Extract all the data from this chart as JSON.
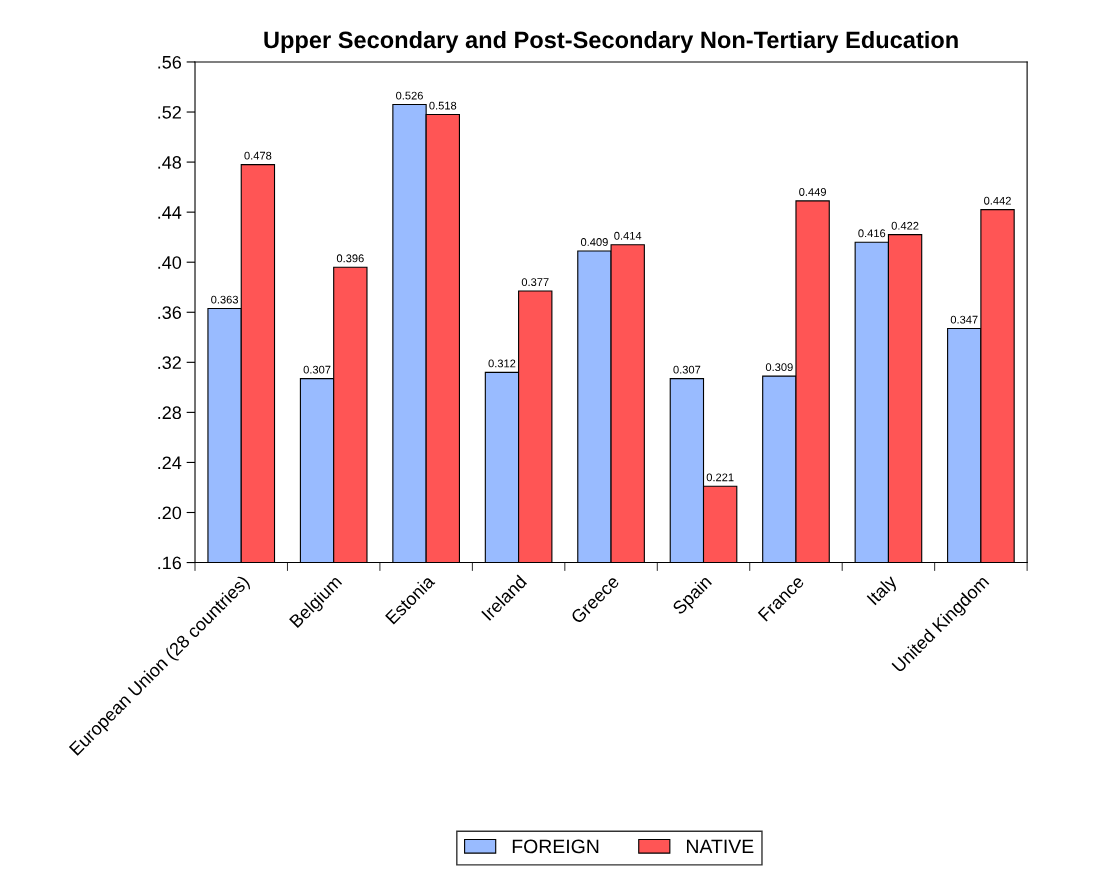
{
  "chart_data": {
    "type": "bar",
    "title": "Upper Secondary and Post-Secondary Non-Tertiary Education",
    "categories": [
      "European Union (28 countries)",
      "Belgium",
      "Estonia",
      "Ireland",
      "Greece",
      "Spain",
      "France",
      "Italy",
      "United Kingdom"
    ],
    "series": [
      {
        "name": "FOREIGN",
        "color": "#99bbff",
        "values": [
          0.363,
          0.307,
          0.526,
          0.312,
          0.409,
          0.307,
          0.309,
          0.416,
          0.347
        ]
      },
      {
        "name": "NATIVE",
        "color": "#ff5555",
        "values": [
          0.478,
          0.396,
          0.518,
          0.377,
          0.414,
          0.221,
          0.449,
          0.422,
          0.442
        ]
      }
    ],
    "ylim": [
      0.16,
      0.56
    ],
    "yticks": [
      {
        "value": 0.16,
        "label": ".16"
      },
      {
        "value": 0.2,
        "label": ".20"
      },
      {
        "value": 0.24,
        "label": ".24"
      },
      {
        "value": 0.28,
        "label": ".28"
      },
      {
        "value": 0.32,
        "label": ".32"
      },
      {
        "value": 0.36,
        "label": ".36"
      },
      {
        "value": 0.4,
        "label": ".40"
      },
      {
        "value": 0.44,
        "label": ".44"
      },
      {
        "value": 0.48,
        "label": ".48"
      },
      {
        "value": 0.52,
        "label": ".52"
      },
      {
        "value": 0.56,
        "label": ".56"
      }
    ],
    "data_labels": true,
    "grid": false,
    "legend": "bottom"
  }
}
